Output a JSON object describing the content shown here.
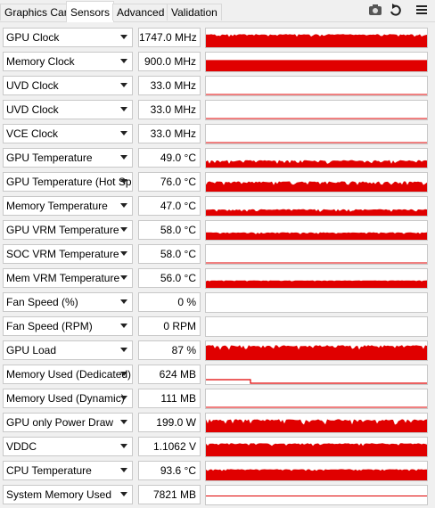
{
  "tabs": [
    "Graphics Card",
    "Sensors",
    "Advanced",
    "Validation"
  ],
  "active_tab": "Sensors",
  "sensors": [
    {
      "name": "GPU Clock",
      "value": "1747.0 MHz"
    },
    {
      "name": "Memory Clock",
      "value": "900.0 MHz"
    },
    {
      "name": "UVD Clock",
      "value": "33.0 MHz"
    },
    {
      "name": "UVD Clock",
      "value": "33.0 MHz"
    },
    {
      "name": "VCE Clock",
      "value": "33.0 MHz"
    },
    {
      "name": "GPU Temperature",
      "value": "49.0 °C"
    },
    {
      "name": "GPU Temperature (Hot Spot)",
      "value": "76.0 °C"
    },
    {
      "name": "Memory Temperature",
      "value": "47.0 °C"
    },
    {
      "name": "GPU VRM Temperature",
      "value": "58.0 °C"
    },
    {
      "name": "SOC VRM Temperature",
      "value": "58.0 °C"
    },
    {
      "name": "Mem VRM Temperature",
      "value": "56.0 °C"
    },
    {
      "name": "Fan Speed (%)",
      "value": "0 %"
    },
    {
      "name": "Fan Speed (RPM)",
      "value": "0 RPM"
    },
    {
      "name": "GPU Load",
      "value": "87 %"
    },
    {
      "name": "Memory Used (Dedicated)",
      "value": "624 MB"
    },
    {
      "name": "Memory Used (Dynamic)",
      "value": "111 MB"
    },
    {
      "name": "GPU only Power Draw",
      "value": "199.0 W"
    },
    {
      "name": "VDDC",
      "value": "1.1062 V"
    },
    {
      "name": "CPU Temperature",
      "value": "93.6 °C"
    },
    {
      "name": "System Memory Used",
      "value": "7821 MB"
    }
  ]
}
